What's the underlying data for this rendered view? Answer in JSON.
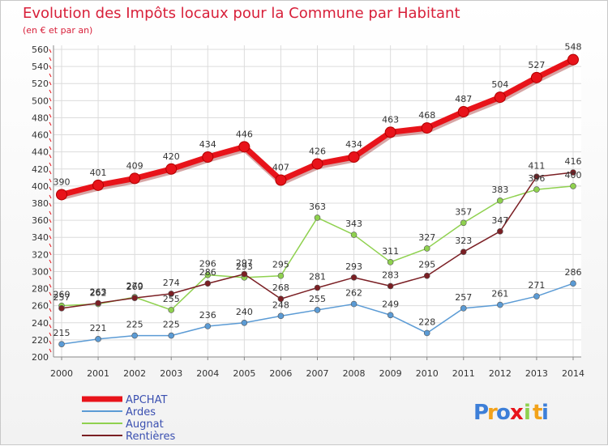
{
  "chart_data": {
    "type": "line",
    "title": "Evolution des Impôts locaux pour la Commune par Habitant",
    "subtitle": "(en € et par an)",
    "x": [
      "2000",
      "2001",
      "2002",
      "2003",
      "2004",
      "2005",
      "2006",
      "2007",
      "2008",
      "2009",
      "2010",
      "2011",
      "2012",
      "2013",
      "2014"
    ],
    "ylim": [
      200,
      560
    ],
    "yticks": [
      200,
      220,
      240,
      260,
      280,
      300,
      320,
      340,
      360,
      380,
      400,
      420,
      440,
      460,
      480,
      500,
      520,
      540,
      560
    ],
    "grid": true,
    "legend_position": "bottom-left",
    "series": [
      {
        "name": "APCHAT",
        "color": "#e8131a",
        "values": [
          390,
          401,
          409,
          420,
          434,
          446,
          407,
          426,
          434,
          463,
          468,
          487,
          504,
          527,
          548
        ]
      },
      {
        "name": "Ardes",
        "color": "#5b9bd5",
        "values": [
          215,
          221,
          225,
          225,
          236,
          240,
          248,
          255,
          262,
          249,
          228,
          257,
          261,
          271,
          286
        ]
      },
      {
        "name": "Augnat",
        "color": "#8fd14f",
        "values": [
          260,
          262,
          270,
          255,
          296,
          293,
          295,
          363,
          343,
          311,
          327,
          357,
          383,
          396,
          400
        ]
      },
      {
        "name": "Rentières",
        "color": "#7b1f24",
        "values": [
          257,
          263,
          269,
          274,
          286,
          297,
          268,
          281,
          293,
          283,
          295,
          323,
          347,
          411,
          416
        ]
      }
    ]
  },
  "logo": {
    "letters": [
      "P",
      "r",
      "o",
      "x",
      "i",
      "t",
      "i"
    ],
    "colors": [
      "#3d7fd8",
      "#f2a21a",
      "#3d7fd8",
      "#e8131a",
      "#8fd14f",
      "#f2a21a",
      "#3d7fd8"
    ]
  }
}
